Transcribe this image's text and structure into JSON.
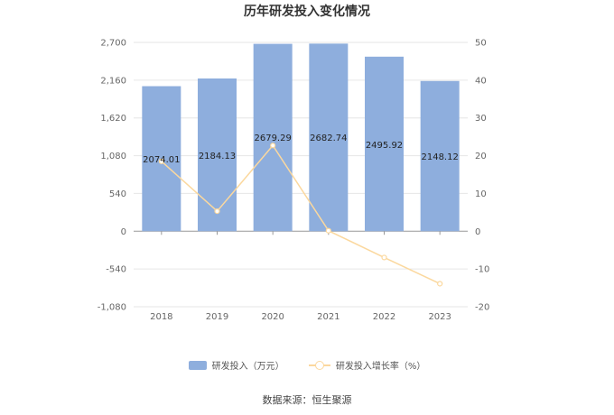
{
  "chart_data": {
    "type": "bar",
    "title": "历年研发投入变化情况",
    "categories": [
      "2018",
      "2019",
      "2020",
      "2021",
      "2022",
      "2023"
    ],
    "series": [
      {
        "name": "研发投入（万元）",
        "type": "bar",
        "axis": "left",
        "color": "#8eaedd",
        "values": [
          2074.01,
          2184.13,
          2679.29,
          2682.74,
          2495.92,
          2148.12
        ],
        "labels": [
          "2074.01",
          "2184.13",
          "2679.29",
          "2682.74",
          "2495.92",
          "2148.12"
        ]
      },
      {
        "name": "研发投入增长率（%）",
        "type": "line",
        "axis": "right",
        "color": "#fbd89e",
        "values": [
          18.5,
          5.3,
          22.7,
          0.13,
          -6.96,
          -13.9
        ]
      }
    ],
    "y_left": {
      "min": -1080,
      "max": 2700,
      "ticks": [
        -1080,
        -540,
        0,
        540,
        1080,
        1620,
        2160,
        2700
      ],
      "tick_labels": [
        "-1,080",
        "-540",
        "0",
        "540",
        "1,080",
        "1,620",
        "2,160",
        "2,700"
      ]
    },
    "y_right": {
      "min": -20,
      "max": 50,
      "ticks": [
        -20,
        -10,
        0,
        10,
        20,
        30,
        40,
        50
      ],
      "tick_labels": [
        "-20",
        "-10",
        "0",
        "10",
        "20",
        "30",
        "40",
        "50"
      ]
    },
    "grid": true,
    "legend_position": "bottom"
  },
  "source": "数据来源：恒生聚源"
}
